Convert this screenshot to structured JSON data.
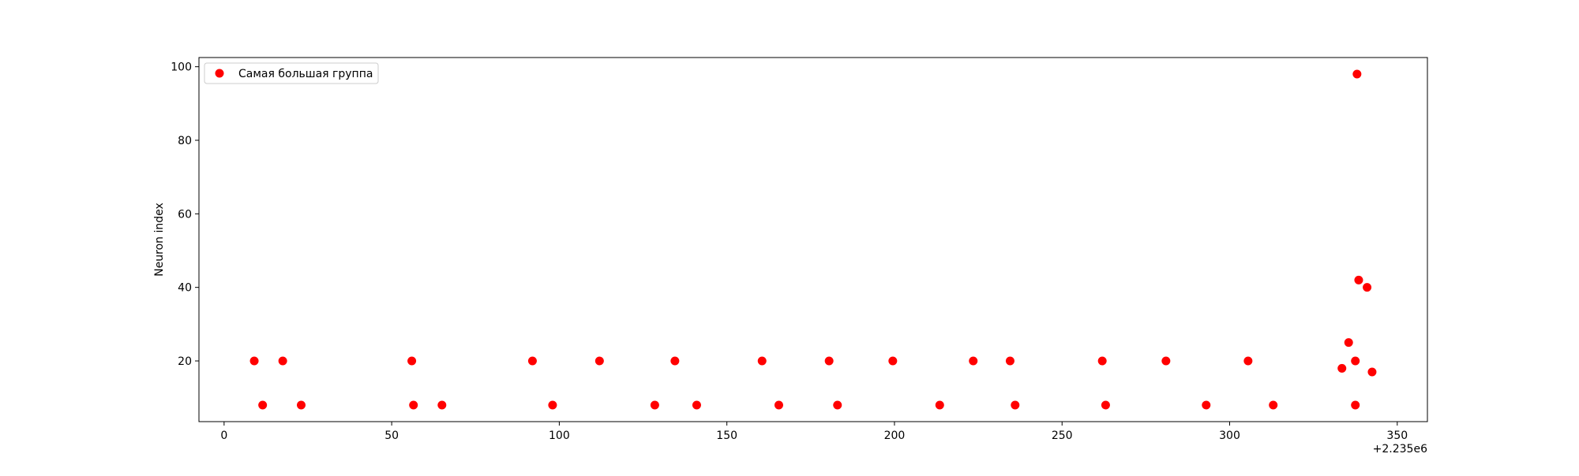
{
  "chart_data": {
    "type": "scatter",
    "title": "",
    "xlabel": "",
    "ylabel": "Neuron index",
    "x_offset_label": "+2.235e6",
    "xlim": [
      -7.5,
      359
    ],
    "ylim": [
      3.5,
      102.5
    ],
    "grid": false,
    "legend_placement": "top-left",
    "x_ticks": [
      0,
      50,
      100,
      150,
      200,
      250,
      300,
      350
    ],
    "y_ticks": [
      20,
      40,
      60,
      80,
      100
    ],
    "series": [
      {
        "name": "Самая большая группа",
        "color": "#ff0000",
        "points": [
          [
            9,
            20
          ],
          [
            11.5,
            8
          ],
          [
            17.5,
            20
          ],
          [
            23,
            8
          ],
          [
            56,
            20
          ],
          [
            56.5,
            8
          ],
          [
            65,
            8
          ],
          [
            92,
            20
          ],
          [
            98,
            8
          ],
          [
            112,
            20
          ],
          [
            128.5,
            8
          ],
          [
            134.5,
            20
          ],
          [
            141,
            8
          ],
          [
            160.5,
            20
          ],
          [
            165.5,
            8
          ],
          [
            180.5,
            20
          ],
          [
            183,
            8
          ],
          [
            199.5,
            20
          ],
          [
            213.5,
            8
          ],
          [
            223.5,
            20
          ],
          [
            234.5,
            20
          ],
          [
            236,
            8
          ],
          [
            262,
            20
          ],
          [
            263,
            8
          ],
          [
            281,
            20
          ],
          [
            293,
            8
          ],
          [
            305.5,
            20
          ],
          [
            313,
            8
          ],
          [
            333.5,
            18
          ],
          [
            335.5,
            25
          ],
          [
            337.5,
            20
          ],
          [
            337.5,
            8
          ],
          [
            338,
            98
          ],
          [
            338.5,
            42
          ],
          [
            341,
            40
          ],
          [
            342.5,
            17
          ]
        ]
      }
    ]
  }
}
